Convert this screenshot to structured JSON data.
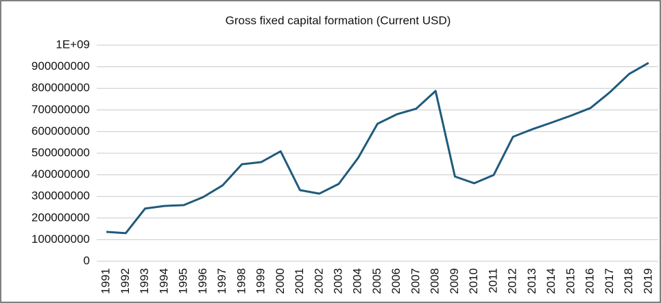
{
  "chart_data": {
    "type": "line",
    "title": "Gross fixed capital formation (Current USD)",
    "categories": [
      "1991",
      "1992",
      "1993",
      "1994",
      "1995",
      "1996",
      "1997",
      "1998",
      "1999",
      "2000",
      "2001",
      "2002",
      "2003",
      "2004",
      "2005",
      "2006",
      "2007",
      "2008",
      "2009",
      "2010",
      "2011",
      "2012",
      "2013",
      "2014",
      "2015",
      "2016",
      "2017",
      "2018",
      "2019"
    ],
    "series": [
      {
        "name": "Gross fixed capital formation",
        "color": "#1f5a7c",
        "values": [
          136000000,
          130000000,
          244000000,
          256000000,
          260000000,
          297000000,
          351000000,
          449000000,
          459000000,
          509000000,
          329000000,
          313000000,
          358000000,
          478000000,
          636000000,
          680000000,
          706000000,
          788000000,
          392000000,
          361000000,
          399000000,
          576000000,
          611000000,
          642000000,
          674000000,
          709000000,
          782000000,
          867000000,
          918000000
        ]
      }
    ],
    "ylim": [
      0,
      1000000000
    ],
    "yticks": [
      0,
      100000000,
      200000000,
      300000000,
      400000000,
      500000000,
      600000000,
      700000000,
      800000000,
      900000000,
      {
        "value": 1000000000,
        "label": "1E+09"
      }
    ],
    "grid": true
  }
}
